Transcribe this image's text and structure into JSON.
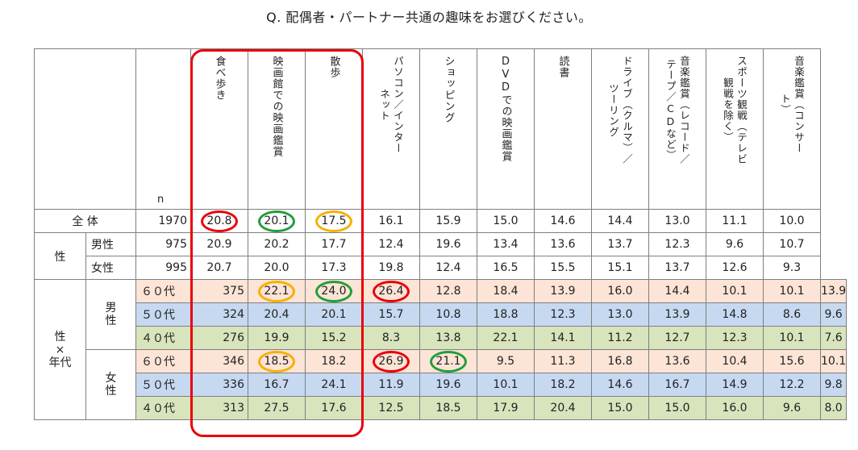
{
  "title": "Q. 配偶者・パートナー共通の趣味をお選びください。",
  "n_label": "n",
  "group_labels": {
    "total": "全 体",
    "gender": "性",
    "gender_age": "性\n×\n年代",
    "male": "男\n性",
    "female": "女\n性"
  },
  "colors": {
    "highlight_box": "#e8000b",
    "ring_red": "#e8000b",
    "ring_green": "#1f9e3a",
    "ring_yellow": "#f5b000",
    "band_60": "#fce4d6",
    "band_50": "#c6d9f1",
    "band_40": "#d8e4bc"
  },
  "chart_data": {
    "type": "table",
    "title": "Q. 配偶者・パートナー共通の趣味をお選びください。",
    "columns": [
      "食べ歩き",
      "映画館での映画鑑賞",
      "散歩",
      "パソコン／インターネット",
      "ショッピング",
      "DVDでの映画鑑賞",
      "読書",
      "ドライブ（クルマ）／ツーリング",
      "音楽鑑賞（レコード／テープ／CDなど）",
      "スポーツ観戦（テレビ観戦を除く）",
      "音楽鑑賞（コンサート）"
    ],
    "rows": [
      {
        "label": "全 体",
        "n": 1970,
        "values": [
          20.8,
          20.1,
          17.5,
          16.1,
          15.9,
          15.0,
          14.6,
          14.4,
          13.0,
          11.1,
          10.0
        ]
      },
      {
        "label": "男性",
        "n": 975,
        "values": [
          20.9,
          20.2,
          17.7,
          12.4,
          19.6,
          13.4,
          13.6,
          13.7,
          12.3,
          9.6,
          10.7
        ]
      },
      {
        "label": "女性",
        "n": 995,
        "values": [
          20.7,
          20.0,
          17.3,
          19.8,
          12.4,
          16.5,
          15.5,
          15.1,
          13.7,
          12.6,
          9.3
        ]
      },
      {
        "label": "６０代",
        "n": 375,
        "values": [
          22.1,
          24.0,
          26.4,
          12.8,
          18.4,
          13.9,
          16.0,
          14.4,
          10.1,
          10.1,
          13.9
        ]
      },
      {
        "label": "５０代",
        "n": 324,
        "values": [
          20.4,
          20.1,
          15.7,
          10.8,
          18.8,
          12.3,
          13.0,
          13.9,
          14.8,
          8.6,
          9.6
        ]
      },
      {
        "label": "４０代",
        "n": 276,
        "values": [
          19.9,
          15.2,
          8.3,
          13.8,
          22.1,
          14.1,
          11.2,
          12.7,
          12.3,
          10.1,
          7.6
        ]
      },
      {
        "label": "６０代",
        "n": 346,
        "values": [
          18.5,
          18.2,
          26.9,
          21.1,
          9.5,
          11.3,
          16.8,
          13.6,
          10.4,
          15.6,
          10.1
        ]
      },
      {
        "label": "５０代",
        "n": 336,
        "values": [
          16.7,
          24.1,
          11.9,
          19.6,
          10.1,
          18.2,
          14.6,
          16.7,
          14.9,
          12.2,
          9.8
        ]
      },
      {
        "label": "４０代",
        "n": 313,
        "values": [
          27.5,
          17.6,
          12.5,
          18.5,
          17.9,
          20.4,
          15.0,
          15.0,
          16.0,
          9.6,
          8.0
        ]
      }
    ],
    "column_headers_printed": [
      [
        "食べ歩き"
      ],
      [
        "映画館での映画鑑賞"
      ],
      [
        "散歩"
      ],
      [
        "パソコン／インター",
        "ネット"
      ],
      [
        "ショッピング"
      ],
      [
        "DVDでの映画鑑賞"
      ],
      [
        "読書"
      ],
      [
        "ドライブ（クルマ）／",
        "ツーリング"
      ],
      [
        "音楽鑑賞（レコード／",
        "テープ／CDなど）"
      ],
      [
        "スポーツ観戦（テレビ",
        "観戦を除く）"
      ],
      [
        "音楽鑑賞（コンサー",
        "ト）"
      ]
    ],
    "circled_cells": [
      {
        "row": 0,
        "col": 0,
        "color": "red"
      },
      {
        "row": 0,
        "col": 1,
        "color": "green"
      },
      {
        "row": 0,
        "col": 2,
        "color": "yellow"
      },
      {
        "row": 3,
        "col": 0,
        "color": "yellow"
      },
      {
        "row": 3,
        "col": 1,
        "color": "green"
      },
      {
        "row": 3,
        "col": 2,
        "color": "red"
      },
      {
        "row": 6,
        "col": 0,
        "color": "yellow"
      },
      {
        "row": 6,
        "col": 2,
        "color": "red"
      },
      {
        "row": 6,
        "col": 3,
        "color": "green"
      }
    ]
  }
}
